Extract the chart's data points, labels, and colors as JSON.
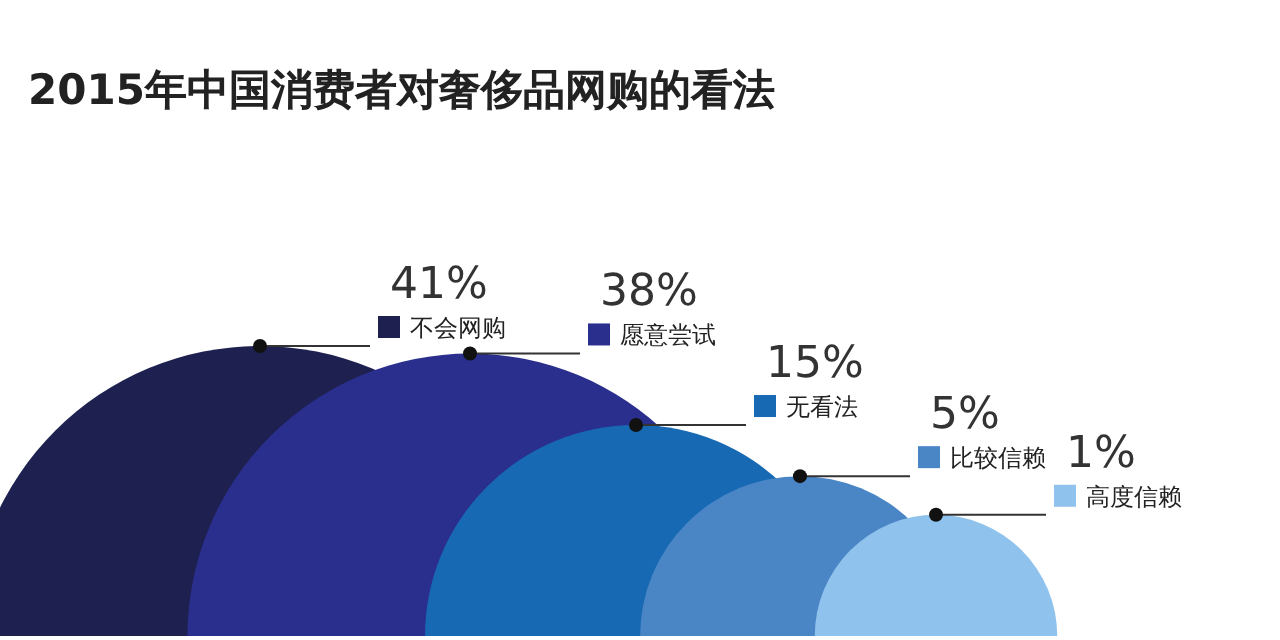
{
  "chart_data": {
    "type": "other",
    "title": "2015年中国消费者对奢侈品网购的看法",
    "categories": [
      "不会网购",
      "愿意尝试",
      "无看法",
      "比较信赖",
      "高度信赖"
    ],
    "values": [
      41,
      38,
      15,
      5,
      1
    ],
    "value_labels": [
      "41%",
      "38%",
      "15%",
      "5%",
      "1%"
    ],
    "colors": [
      "#1e2150",
      "#2a2f8e",
      "#1769b3",
      "#4a86c6",
      "#8fc2ec"
    ]
  }
}
